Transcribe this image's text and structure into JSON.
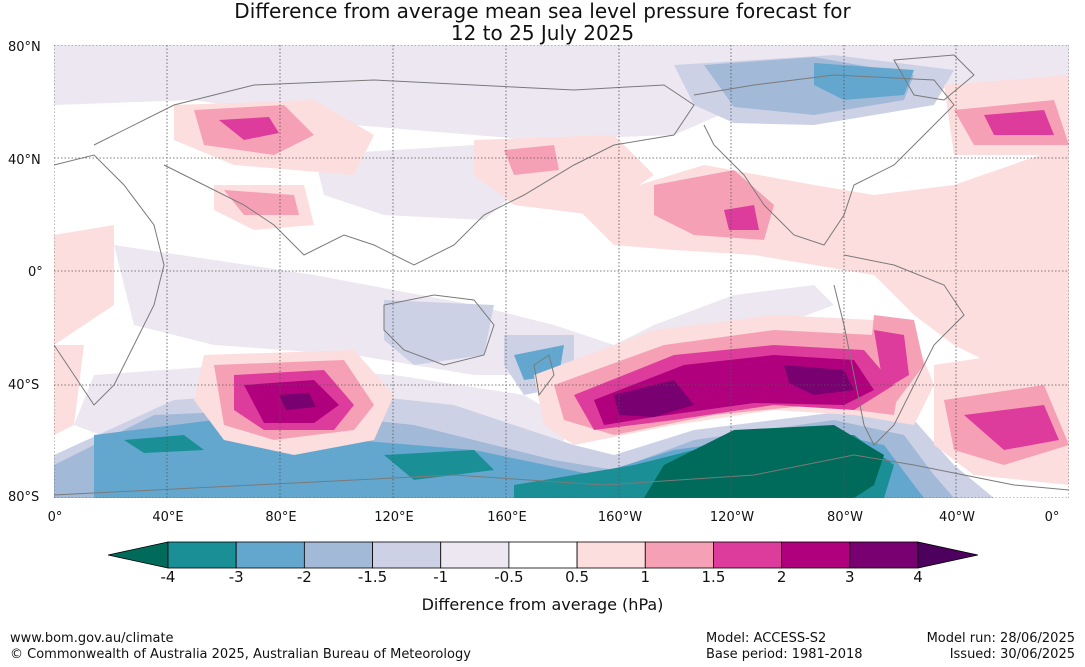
{
  "title": {
    "line1": "Difference from average mean sea level pressure forecast for",
    "line2": "12 to 25 July 2025"
  },
  "axes": {
    "lat_labels": [
      "80°N",
      "40°N",
      "0°",
      "40°S",
      "80°S"
    ],
    "lon_labels": [
      "0°",
      "40°E",
      "80°E",
      "120°E",
      "160°E",
      "160°W",
      "120°W",
      "80°W",
      "40°W",
      "0°"
    ]
  },
  "colorbar": {
    "ticks": [
      "-4",
      "-3",
      "-2",
      "-1.5",
      "-1",
      "-0.5",
      "0.5",
      "1",
      "1.5",
      "2",
      "3",
      "4"
    ],
    "colors": [
      "#006b5a",
      "#1a8f96",
      "#63a7cf",
      "#a3b9d8",
      "#cdd1e6",
      "#ede7f1",
      "#ffffff",
      "#fddede",
      "#f6a0b6",
      "#de3c9c",
      "#b0007d",
      "#780070",
      "#4d005e"
    ],
    "label": "Difference from average (hPa)"
  },
  "footer": {
    "site": "www.bom.gov.au/climate",
    "copyright": "© Commonwealth of Australia 2025, Australian Bureau of Meteorology",
    "model": "Model: ACCESS-S2",
    "base_period": "Base period: 1981-2018",
    "model_run": "Model run: 28/06/2025",
    "issued": "Issued: 30/06/2025"
  }
}
